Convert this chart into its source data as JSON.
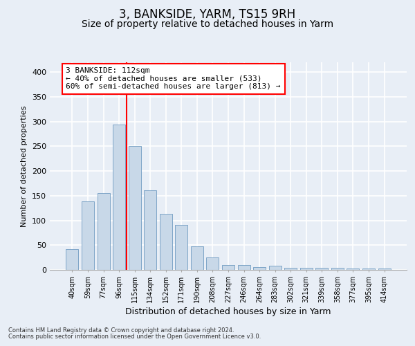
{
  "title1": "3, BANKSIDE, YARM, TS15 9RH",
  "title2": "Size of property relative to detached houses in Yarm",
  "xlabel": "Distribution of detached houses by size in Yarm",
  "ylabel": "Number of detached properties",
  "categories": [
    "40sqm",
    "59sqm",
    "77sqm",
    "96sqm",
    "115sqm",
    "134sqm",
    "152sqm",
    "171sqm",
    "190sqm",
    "208sqm",
    "227sqm",
    "246sqm",
    "264sqm",
    "283sqm",
    "302sqm",
    "321sqm",
    "339sqm",
    "358sqm",
    "377sqm",
    "395sqm",
    "414sqm"
  ],
  "values": [
    42,
    138,
    155,
    294,
    251,
    161,
    113,
    91,
    47,
    25,
    10,
    10,
    5,
    9,
    4,
    4,
    4,
    4,
    3,
    3,
    3
  ],
  "bar_color": "#c8d8e8",
  "bar_edge_color": "#5b8db8",
  "annotation_text_line1": "3 BANKSIDE: 112sqm",
  "annotation_text_line2": "← 40% of detached houses are smaller (533)",
  "annotation_text_line3": "60% of semi-detached houses are larger (813) →",
  "vline_color": "red",
  "vline_x": 3.5,
  "footnote1": "Contains HM Land Registry data © Crown copyright and database right 2024.",
  "footnote2": "Contains public sector information licensed under the Open Government Licence v3.0.",
  "ylim": [
    0,
    420
  ],
  "yticks": [
    0,
    50,
    100,
    150,
    200,
    250,
    300,
    350,
    400
  ],
  "bg_color": "#e8eef6",
  "grid_color": "white",
  "title1_fontsize": 12,
  "title2_fontsize": 10
}
